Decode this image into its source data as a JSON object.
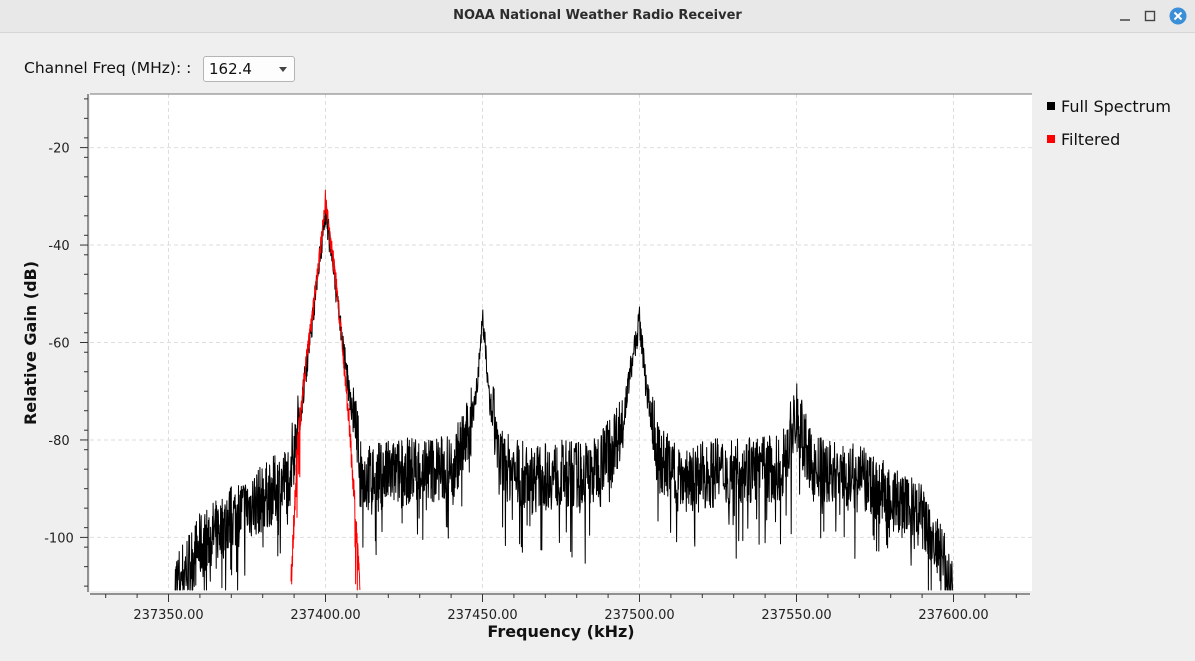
{
  "window": {
    "title": "NOAA National Weather Radio Receiver",
    "controls": [
      "minimize-icon",
      "maximize-icon",
      "close-icon"
    ]
  },
  "toolbar": {
    "channel_label": "Channel Freq (MHz): :",
    "channel_value": "162.4"
  },
  "legend": {
    "items": [
      {
        "label": "Full Spectrum",
        "color": "#000000"
      },
      {
        "label": "Filtered",
        "color": "#ff0000"
      }
    ]
  },
  "chart_data": {
    "type": "line",
    "xlabel": "Frequency (kHz)",
    "ylabel": "Relative Gain (dB)",
    "xlim": [
      237325,
      237625
    ],
    "ylim": [
      -111,
      -9
    ],
    "x_ticks": [
      "237350.00",
      "237400.00",
      "237450.00",
      "237500.00",
      "237550.00",
      "237600.00"
    ],
    "x_tick_values": [
      237350,
      237400,
      237450,
      237500,
      237550,
      237600
    ],
    "y_ticks": [
      "-20",
      "-40",
      "-60",
      "-80",
      "-100"
    ],
    "y_tick_values": [
      -20,
      -40,
      -60,
      -80,
      -100
    ],
    "grid": true,
    "legend_position": "right",
    "series": [
      {
        "name": "Full Spectrum",
        "color": "#000000",
        "x": [
          237352,
          237360,
          237370,
          237380,
          237388,
          237392,
          237396,
          237400,
          237404,
          237408,
          237412,
          237420,
          237430,
          237440,
          237446,
          237449,
          237450,
          237452,
          237456,
          237465,
          237475,
          237485,
          237494,
          237498,
          237500,
          237502,
          237506,
          237515,
          237530,
          237545,
          237550,
          237555,
          237570,
          237580,
          237590,
          237595,
          237600
        ],
        "y": [
          -110,
          -102,
          -96,
          -92,
          -88,
          -74,
          -54,
          -32,
          -52,
          -72,
          -88,
          -87,
          -86,
          -86,
          -78,
          -64,
          -53,
          -70,
          -85,
          -88,
          -87,
          -87,
          -78,
          -62,
          -55,
          -68,
          -84,
          -88,
          -86,
          -86,
          -75,
          -86,
          -88,
          -92,
          -96,
          -103,
          -110
        ]
      },
      {
        "name": "Filtered",
        "color": "#ff0000",
        "x": [
          237389,
          237391,
          237393,
          237395,
          237397,
          237399,
          237400,
          237401,
          237403,
          237405,
          237407,
          237409,
          237411
        ],
        "y": [
          -110,
          -82,
          -68,
          -58,
          -48,
          -37,
          -30,
          -36,
          -45,
          -58,
          -72,
          -90,
          -110
        ]
      }
    ]
  }
}
